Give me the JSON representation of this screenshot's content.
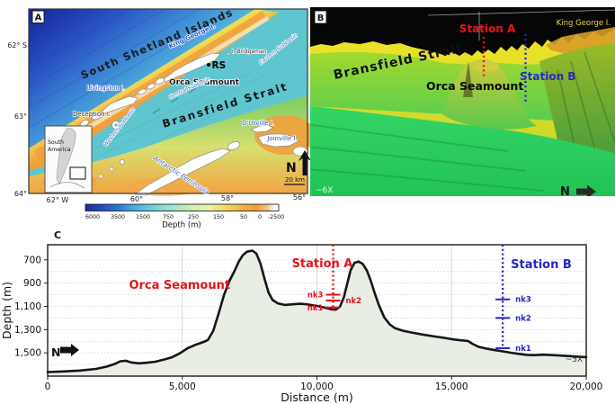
{
  "panel_a": {
    "label": "A",
    "region_label": "South Shetland Islands",
    "labels": {
      "king_george": "King George I.",
      "bridgeman": "I. Bridgeman",
      "rs": "RS",
      "orca": "Orca Seamount",
      "central_subbasin": "Central Subbasin",
      "eastern_subbasin": "Eastern Subbasin",
      "western_subbasin": "Western Subbasin",
      "livingston": "Livingston I.",
      "deception": "Deception I.",
      "bransfield": "Bransfield  Strait",
      "durville": "D'Urville I.",
      "joinville": "Joinville I.",
      "antarctic_peninsula": "Antarctic Peninsula",
      "south_america_line1": "South",
      "south_america_line2": "America"
    },
    "north_label": "N",
    "scale_label": "20 km",
    "lat_ticks": [
      "62° S",
      "63°",
      "64°"
    ],
    "lon_ticks": [
      "62° W",
      "60°",
      "58°",
      "56°"
    ],
    "colorbar": {
      "title": "Depth (m)",
      "ticks": [
        "6000",
        "3500",
        "1500",
        "750",
        "250",
        "150",
        "50",
        "0",
        "-2500"
      ]
    }
  },
  "panel_b": {
    "label": "B",
    "station_a": "Station A",
    "station_b": "Station B",
    "king_george": "King George I.",
    "bransfield": "Bransfield Strait",
    "orca": "Orca Seamount",
    "vertical_exaggeration": "~6X",
    "north_label": "N",
    "colors": {
      "station_a": "#ee1217",
      "station_b": "#2525c8"
    }
  },
  "chart_data": {
    "type": "area",
    "title": "",
    "xlabel": "Distance (m)",
    "ylabel": "Depth (m)",
    "panel_label": "C",
    "xlim": [
      0,
      20000
    ],
    "depth_range": [
      570,
      1700
    ],
    "x_ticks": [
      {
        "v": 0,
        "label": "0"
      },
      {
        "v": 5000,
        "label": "5,000"
      },
      {
        "v": 10000,
        "label": "10,000"
      },
      {
        "v": 15000,
        "label": "15,000"
      },
      {
        "v": 20000,
        "label": "20,000"
      }
    ],
    "y_ticks": [
      {
        "v": 700,
        "label": "700"
      },
      {
        "v": 900,
        "label": "900"
      },
      {
        "v": 1100,
        "label": "1,100"
      },
      {
        "v": 1300,
        "label": "1,300"
      },
      {
        "v": 1500,
        "label": "1,500"
      }
    ],
    "grid": {
      "h_from": 700,
      "h_to": 1600,
      "h_step": 100,
      "v_lines": [
        5000,
        10000,
        15000
      ]
    },
    "fill_color": "#e9eee5",
    "line_color": "#161616",
    "profile": [
      [
        0,
        1665
      ],
      [
        600,
        1660
      ],
      [
        1200,
        1652
      ],
      [
        1800,
        1638
      ],
      [
        2200,
        1618
      ],
      [
        2500,
        1595
      ],
      [
        2700,
        1572
      ],
      [
        2900,
        1568
      ],
      [
        3100,
        1582
      ],
      [
        3400,
        1590
      ],
      [
        3700,
        1585
      ],
      [
        4000,
        1576
      ],
      [
        4300,
        1558
      ],
      [
        4600,
        1540
      ],
      [
        4900,
        1505
      ],
      [
        5200,
        1460
      ],
      [
        5500,
        1430
      ],
      [
        5750,
        1410
      ],
      [
        5950,
        1390
      ],
      [
        6150,
        1310
      ],
      [
        6350,
        1160
      ],
      [
        6550,
        1000
      ],
      [
        6750,
        880
      ],
      [
        6950,
        790
      ],
      [
        7100,
        715
      ],
      [
        7250,
        660
      ],
      [
        7400,
        630
      ],
      [
        7600,
        620
      ],
      [
        7750,
        645
      ],
      [
        7900,
        730
      ],
      [
        8050,
        860
      ],
      [
        8200,
        980
      ],
      [
        8350,
        1045
      ],
      [
        8550,
        1075
      ],
      [
        8800,
        1088
      ],
      [
        9100,
        1082
      ],
      [
        9400,
        1078
      ],
      [
        9700,
        1085
      ],
      [
        10000,
        1096
      ],
      [
        10300,
        1112
      ],
      [
        10550,
        1126
      ],
      [
        10700,
        1128
      ],
      [
        10850,
        1105
      ],
      [
        11000,
        1020
      ],
      [
        11100,
        930
      ],
      [
        11250,
        790
      ],
      [
        11400,
        725
      ],
      [
        11550,
        715
      ],
      [
        11700,
        735
      ],
      [
        11850,
        790
      ],
      [
        12000,
        880
      ],
      [
        12150,
        990
      ],
      [
        12300,
        1090
      ],
      [
        12500,
        1195
      ],
      [
        12700,
        1255
      ],
      [
        12900,
        1288
      ],
      [
        13200,
        1310
      ],
      [
        13500,
        1325
      ],
      [
        13900,
        1342
      ],
      [
        14300,
        1356
      ],
      [
        14700,
        1370
      ],
      [
        15000,
        1382
      ],
      [
        15300,
        1391
      ],
      [
        15600,
        1397
      ],
      [
        15800,
        1425
      ],
      [
        16000,
        1448
      ],
      [
        16250,
        1462
      ],
      [
        16550,
        1474
      ],
      [
        16900,
        1487
      ],
      [
        17200,
        1499
      ],
      [
        17500,
        1509
      ],
      [
        17800,
        1517
      ],
      [
        18100,
        1520
      ],
      [
        18400,
        1516
      ],
      [
        18700,
        1519
      ],
      [
        19000,
        1523
      ],
      [
        19400,
        1528
      ],
      [
        19700,
        1533
      ],
      [
        20000,
        1537
      ]
    ],
    "annotations": {
      "orca": {
        "text": "Orca Seamount",
        "x": 4900,
        "depth": 950,
        "color": "#e81118"
      },
      "north_label": "N",
      "vertical_exaggeration": "~5X",
      "stations": [
        {
          "id": "station-a",
          "label": "Station A",
          "x": 10600,
          "color": "#e81118",
          "line_bottom_depth": 1140,
          "label_anchor": "middle",
          "label_dx": -12,
          "label_depth": 765,
          "instruments": [
            {
              "name": "nk3",
              "depth": 1000,
              "side": "left"
            },
            {
              "name": "nk2",
              "depth": 1050,
              "side": "right"
            },
            {
              "name": "nk1",
              "depth": 1110,
              "side": "left"
            }
          ]
        },
        {
          "id": "station-b",
          "label": "Station B",
          "x": 16900,
          "color": "#2525c8",
          "line_bottom_depth": 1462,
          "label_anchor": "start",
          "label_dx": 9,
          "label_depth": 770,
          "instruments": [
            {
              "name": "nk3",
              "depth": 1040,
              "side": "right"
            },
            {
              "name": "nk2",
              "depth": 1200,
              "side": "right"
            },
            {
              "name": "nk1",
              "depth": 1460,
              "side": "right"
            }
          ]
        }
      ]
    }
  }
}
